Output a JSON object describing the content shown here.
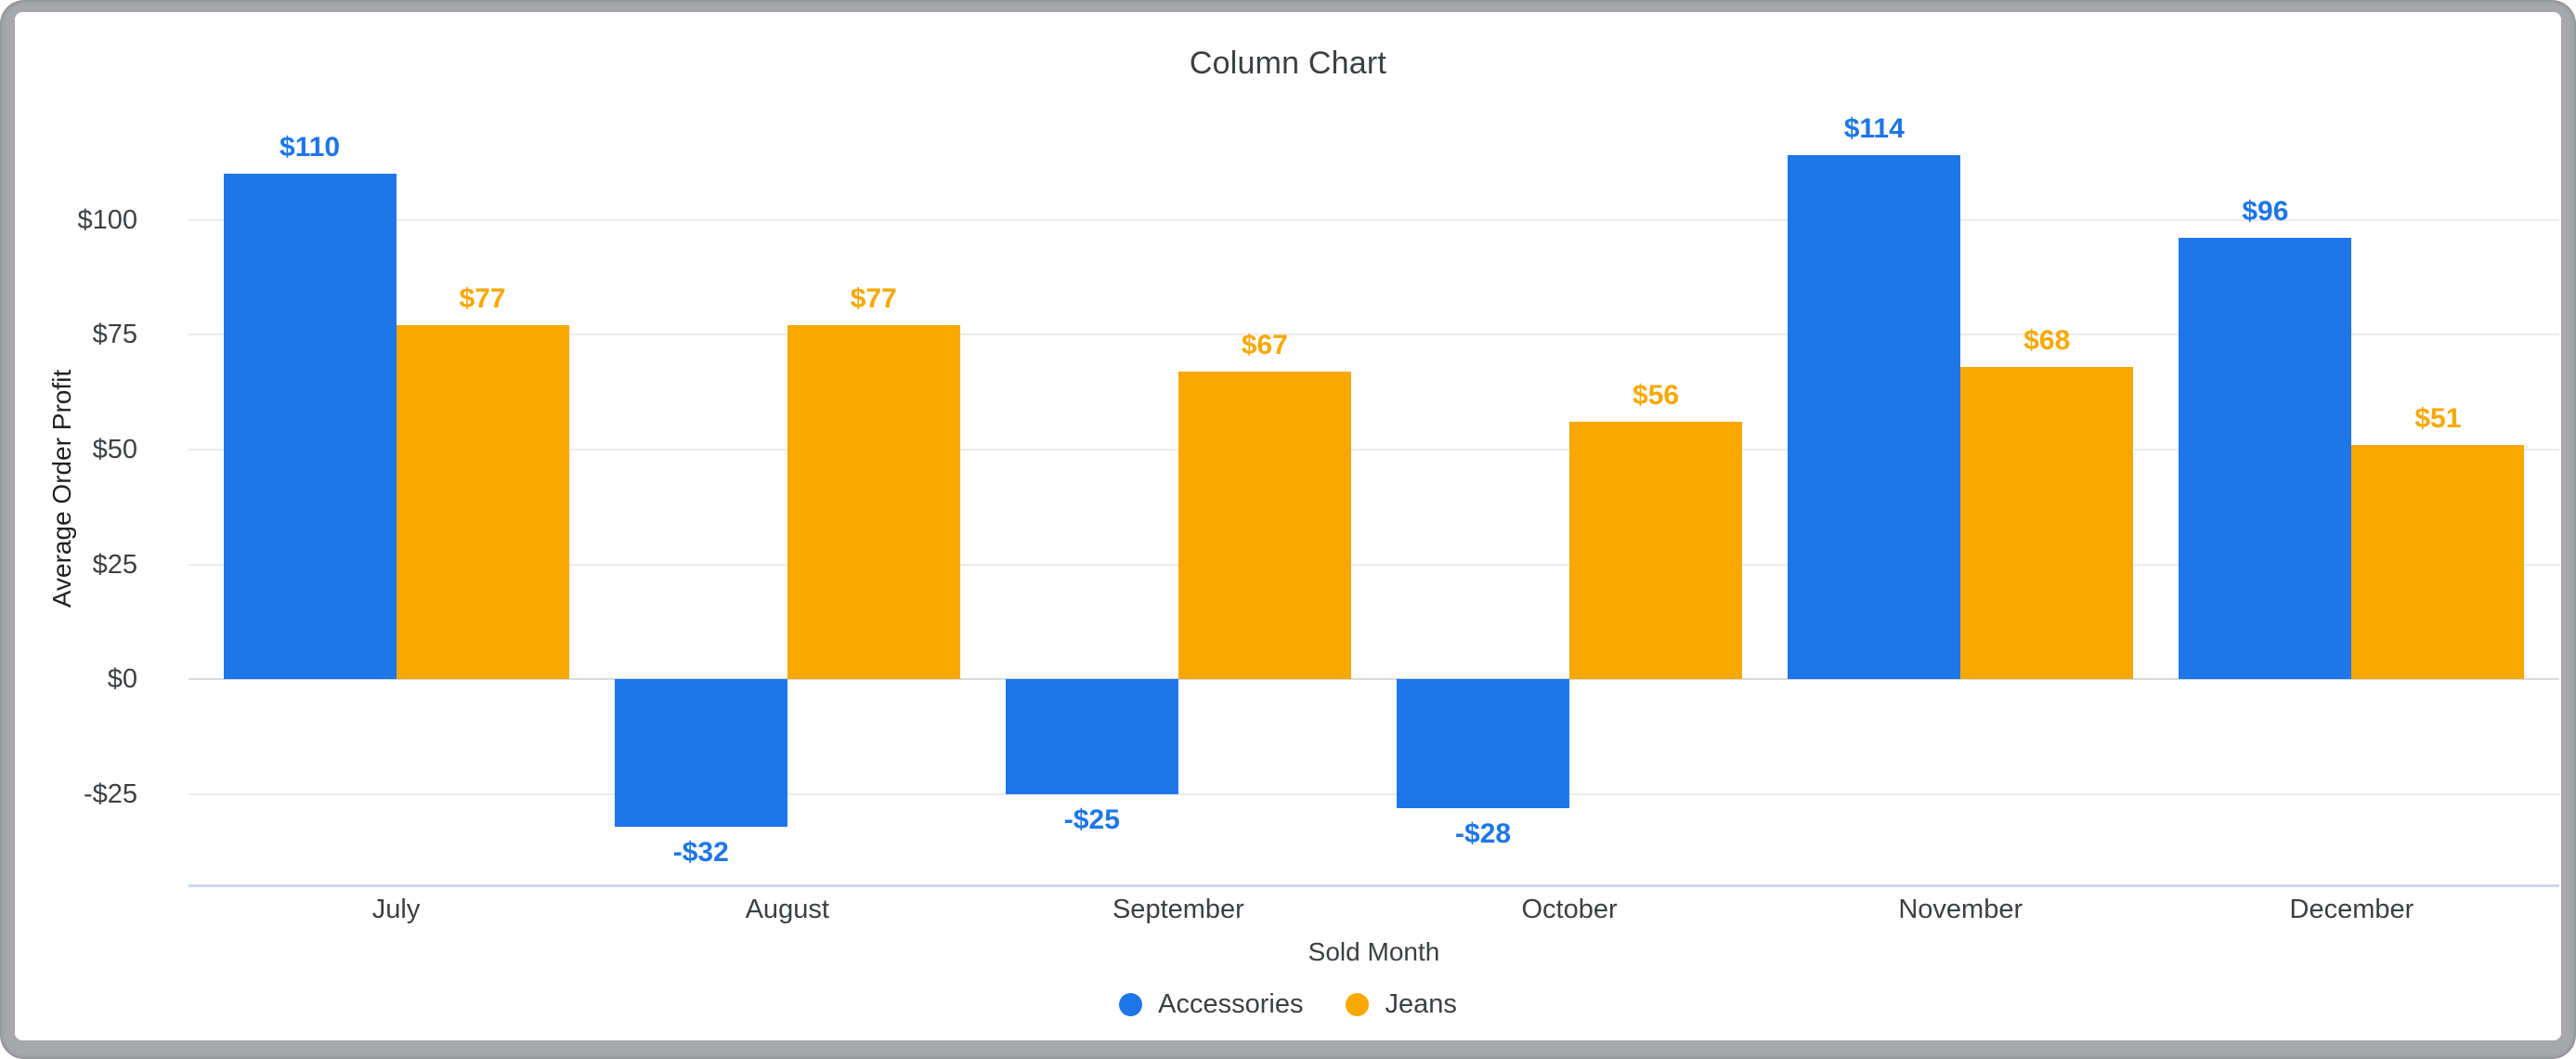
{
  "window": {
    "title": "Column Chart"
  },
  "chart_data": {
    "type": "bar",
    "title": "Column Chart",
    "xlabel": "Sold Month",
    "ylabel": "Average Order Profit",
    "categories": [
      "July",
      "August",
      "September",
      "October",
      "November",
      "December"
    ],
    "series": [
      {
        "name": "Accessories",
        "color": "#1e76e8",
        "values": [
          110,
          -32,
          -25,
          -28,
          114,
          96
        ],
        "labels": [
          "$110",
          "-$32",
          "-$25",
          "-$28",
          "$114",
          "$96"
        ]
      },
      {
        "name": "Jeans",
        "color": "#f8a800",
        "values": [
          77,
          77,
          67,
          56,
          68,
          51
        ],
        "labels": [
          "$77",
          "$77",
          "$67",
          "$56",
          "$68",
          "$51"
        ]
      }
    ],
    "yticks": [
      {
        "value": 100,
        "label": "$100"
      },
      {
        "value": 75,
        "label": "$75"
      },
      {
        "value": 50,
        "label": "$50"
      },
      {
        "value": 25,
        "label": "$25"
      },
      {
        "value": 0,
        "label": "$0"
      },
      {
        "value": -25,
        "label": "-$25"
      }
    ],
    "ylim": [
      -45,
      128
    ],
    "grid": true,
    "legend_position": "bottom"
  },
  "colors": {
    "grid": "#eaebed",
    "zero_grid": "#d9dbde",
    "axis_line": "#cdd8ec",
    "text": "#3c4043",
    "frame_ring": "#a6a8ab",
    "background": "#ffffff"
  }
}
